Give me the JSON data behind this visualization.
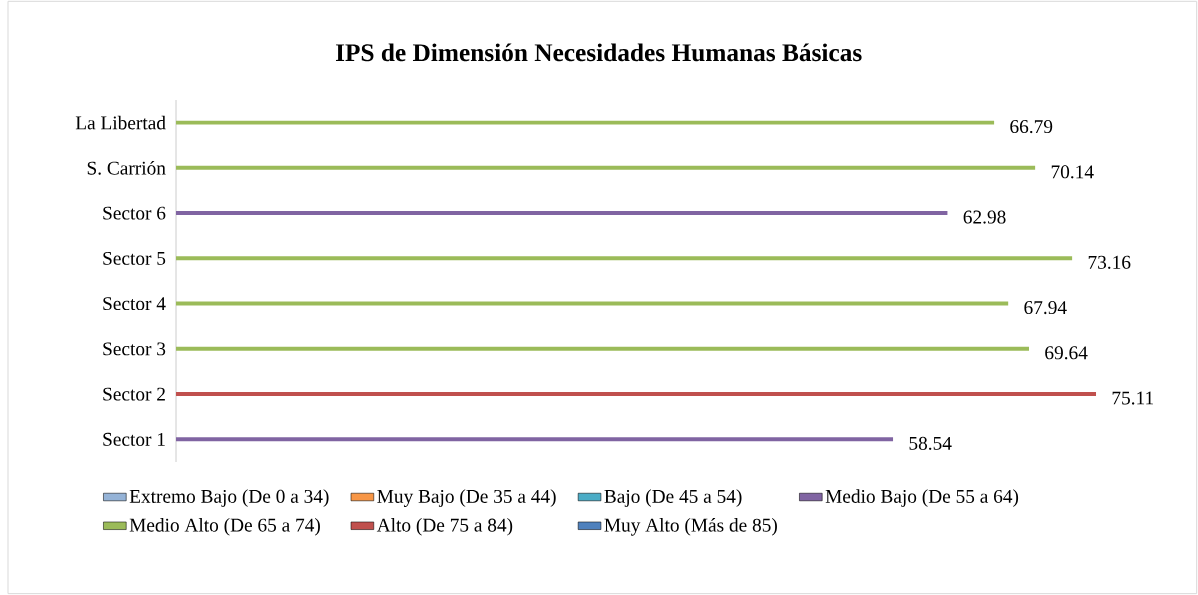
{
  "chart_data": {
    "type": "bar",
    "orientation": "horizontal",
    "title": "IPS de Dimensión Necesidades Humanas Básicas",
    "categories": [
      "La Libertad",
      "S. Carrión",
      "Sector 6",
      "Sector 5",
      "Sector 4",
      "Sector 3",
      "Sector 2",
      "Sector 1"
    ],
    "series": [
      {
        "name": "Extremo Bajo (De 0 a 34)",
        "color": "#95b3d7",
        "values": [
          null,
          null,
          null,
          null,
          null,
          null,
          null,
          null
        ]
      },
      {
        "name": "Muy Bajo (De 35 a 44)",
        "color": "#f79646",
        "values": [
          null,
          null,
          null,
          null,
          null,
          null,
          null,
          null
        ]
      },
      {
        "name": "Bajo (De 45 a 54)",
        "color": "#4bacc6",
        "values": [
          null,
          null,
          null,
          null,
          null,
          null,
          null,
          null
        ]
      },
      {
        "name": "Medio Bajo (De 55 a 64)",
        "color": "#8064a2",
        "values": [
          null,
          null,
          62.98,
          null,
          null,
          null,
          null,
          58.54
        ]
      },
      {
        "name": "Medio Alto (De 65 a 74)",
        "color": "#9bbb59",
        "values": [
          66.79,
          70.14,
          null,
          73.16,
          67.94,
          69.64,
          null,
          null
        ]
      },
      {
        "name": "Alto (De 75 a 84)",
        "color": "#c0504d",
        "values": [
          null,
          null,
          null,
          null,
          null,
          null,
          75.11,
          null
        ]
      },
      {
        "name": "Muy Alto (Más de 85)",
        "color": "#4f81bd",
        "values": [
          null,
          null,
          null,
          null,
          null,
          null,
          null,
          null
        ]
      }
    ],
    "data_labels": true,
    "legend": "bottom",
    "tick_labels": "y"
  }
}
